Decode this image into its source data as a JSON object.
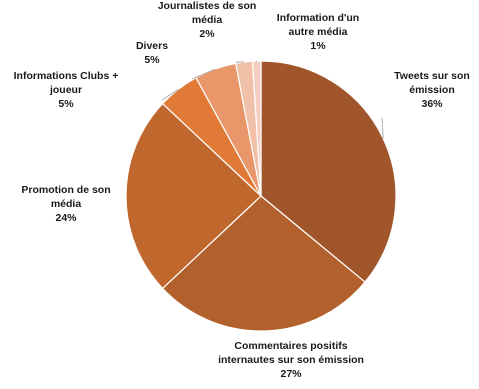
{
  "chart_data": {
    "type": "pie",
    "title": "",
    "start_angle_deg": 0,
    "direction": "clockwise",
    "slices": [
      {
        "label": [
          "Tweets sur son",
          "émission"
        ],
        "pct_text": "36%",
        "value": 36,
        "color": "#a0552a"
      },
      {
        "label": [
          "Commentaires positifs",
          "internautes sur son émission"
        ],
        "pct_text": "27%",
        "value": 27,
        "color": "#b2602c"
      },
      {
        "label": [
          "Promotion de son",
          "média"
        ],
        "pct_text": "24%",
        "value": 24,
        "color": "#c0672e"
      },
      {
        "label": [
          "Informations Clubs +",
          "joueur"
        ],
        "pct_text": "5%",
        "value": 5,
        "color": "#e07a36"
      },
      {
        "label": [
          "Divers"
        ],
        "pct_text": "5%",
        "value": 5,
        "color": "#e8966a"
      },
      {
        "label": [
          "Journalistes de son",
          "média"
        ],
        "pct_text": "2%",
        "value": 2,
        "color": "#f0c0a8"
      },
      {
        "label": [
          "Information d'un",
          "autre média"
        ],
        "pct_text": "1%",
        "value": 1,
        "color": "#f3cdbf"
      }
    ]
  }
}
